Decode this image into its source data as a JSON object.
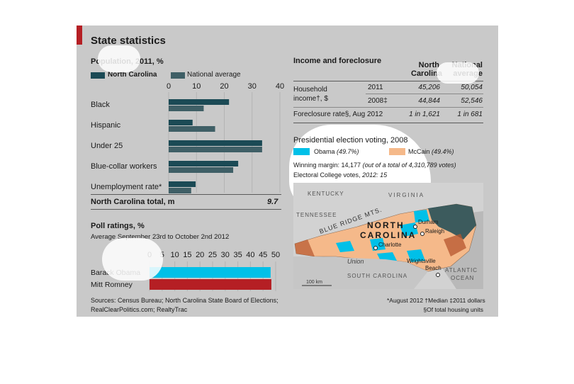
{
  "title": "State statistics",
  "colors": {
    "north_carolina": "#1b4a55",
    "national_average": "#3f5f66",
    "obama": "#00c0e8",
    "mccain": "#f5b98a",
    "red": "#b51f24"
  },
  "population": {
    "heading": "Population, 2011, %",
    "legend_nc": "North Carolina",
    "legend_nat": "National average",
    "total_label": "North Carolina total, m",
    "total_value": "9.7"
  },
  "poll": {
    "heading": "Poll ratings, %",
    "subheading": "Average September 23rd to October 2nd 2012"
  },
  "income": {
    "heading": "Income and foreclosure",
    "col_nc": "North Carolina",
    "col_nat": "National average",
    "row_label_1": "Household",
    "row_label_2": "income†, $",
    "year_2011": "2011",
    "year_2008": "2008‡",
    "nc_2011": "45,206",
    "nat_2011": "50,054",
    "nc_2008": "44,844",
    "nat_2008": "52,546",
    "foreclosure_label": "Foreclosure rate§, Aug 2012",
    "foreclosure_nc": "1 in 1,621",
    "foreclosure_nat": "1 in 681"
  },
  "election": {
    "heading": "Presidential election voting, 2008",
    "obama_label": "Obama",
    "obama_pct": "(49.7%)",
    "mccain_label": "McCain",
    "mccain_pct": "(49.4%)",
    "margin_label": "Winning margin: 14,177",
    "margin_note": "(out of a total of 4,310,789 votes)",
    "ec_label": "Electoral College votes,",
    "ec_value": "2012: 15"
  },
  "map": {
    "labels": {
      "kentucky": "KENTUCKY",
      "virginia": "VIRGINIA",
      "tennessee": "TENNESSEE",
      "blue_ridge": "BLUE RIDGE MTS.",
      "north": "NORTH",
      "carolina": "CAROLINA",
      "durham": "Durham",
      "raleigh": "Raleigh",
      "charlotte": "Charlotte",
      "union": "Union",
      "wrightsville_1": "Wrightsville",
      "wrightsville_2": "Beach",
      "south_carolina": "SOUTH CAROLINA",
      "atlantic_1": "ATLANTIC",
      "atlantic_2": "OCEAN",
      "scale": "100 km"
    }
  },
  "footer": {
    "sources_1": "Sources: Census Bureau; North Carolina State Board of Elections;",
    "sources_2": "RealClearPolitics.com; RealtyTrac",
    "notes_1": "*August 2012  †Median  ‡2011 dollars",
    "notes_2": "§Of total housing units"
  },
  "chart_data": [
    {
      "type": "bar",
      "title": "Population, 2011, %",
      "categories": [
        "Black",
        "Hispanic",
        "Under 25",
        "Blue-collar workers",
        "Unemployment rate*"
      ],
      "series": [
        {
          "name": "North Carolina",
          "values": [
            21.7,
            8.6,
            33.6,
            25.0,
            9.7
          ]
        },
        {
          "name": "National average",
          "values": [
            12.6,
            16.7,
            33.6,
            23.2,
            8.1
          ]
        }
      ],
      "xlim": [
        0,
        40
      ],
      "xticks": [
        0,
        10,
        20,
        30,
        40
      ]
    },
    {
      "type": "bar",
      "title": "Poll ratings, %",
      "subtitle": "Average September 23rd to October 2nd 2012",
      "categories": [
        "Barack Obama",
        "Mitt Romney"
      ],
      "values": [
        48.0,
        48.3
      ],
      "colors": [
        "#00c0e8",
        "#b51f24"
      ],
      "xlim": [
        0,
        50
      ],
      "xticks": [
        0,
        5,
        10,
        15,
        20,
        25,
        30,
        35,
        40,
        45,
        50
      ]
    }
  ]
}
